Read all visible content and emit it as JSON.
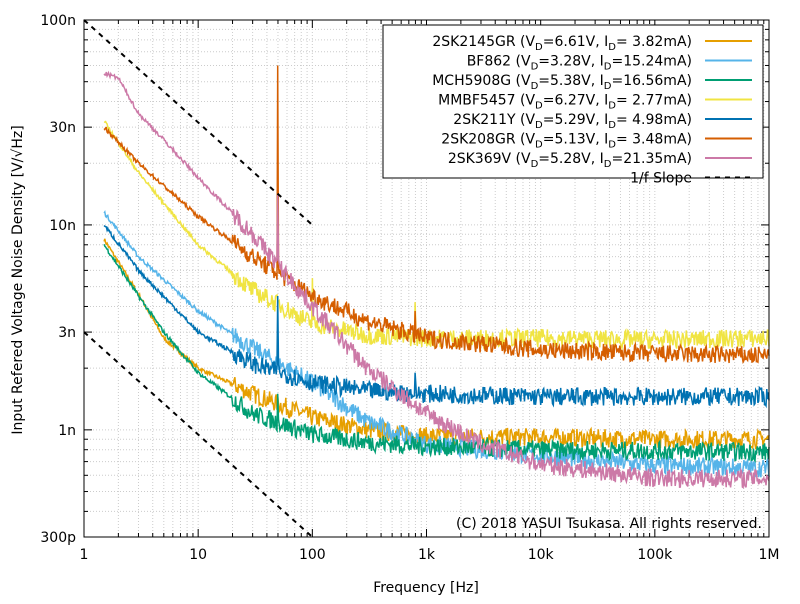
{
  "chart_data": {
    "type": "line",
    "xlabel": "Frequency [Hz]",
    "ylabel": "Input Refered Voltage Noise Density [V/√Hz]",
    "xscale": "log",
    "yscale": "log",
    "xlim": [
      1,
      1000000
    ],
    "ylim": [
      0.3,
      100
    ],
    "y_unit": "nV/√Hz",
    "x_ticks": [
      {
        "v": 1,
        "label": "1"
      },
      {
        "v": 10,
        "label": "10"
      },
      {
        "v": 100,
        "label": "100"
      },
      {
        "v": 1000,
        "label": "1k"
      },
      {
        "v": 10000,
        "label": "10k"
      },
      {
        "v": 100000,
        "label": "100k"
      },
      {
        "v": 1000000,
        "label": "1M"
      }
    ],
    "y_ticks": [
      {
        "v": 100,
        "label": "100n"
      },
      {
        "v": 30,
        "label": "30n"
      },
      {
        "v": 10,
        "label": "10n"
      },
      {
        "v": 3,
        "label": "3n"
      },
      {
        "v": 1,
        "label": "1n"
      },
      {
        "v": 0.3,
        "label": "300p"
      }
    ],
    "grid": true,
    "legend_position": "top-right",
    "copyright": "(C) 2018 YASUI Tsukasa. All rights reserved.",
    "series": [
      {
        "name": "2SK2145GR",
        "vd": "6.61V",
        "id": " 3.82mA",
        "color": "#e69f00",
        "x": [
          1.5,
          3,
          5,
          10,
          30,
          100,
          300,
          1000,
          10000,
          100000,
          1000000
        ],
        "y": [
          8.5,
          4.6,
          2.8,
          2.0,
          1.5,
          1.15,
          1.0,
          0.93,
          0.92,
          0.9,
          0.9
        ],
        "spikes": []
      },
      {
        "name": "BF862",
        "vd": "3.28V",
        "id": "15.24mA",
        "color": "#56b4e9",
        "x": [
          1.5,
          3,
          10,
          30,
          100,
          300,
          1000,
          10000,
          100000,
          1000000
        ],
        "y": [
          11.5,
          7,
          3.8,
          2.5,
          1.7,
          1.1,
          0.85,
          0.75,
          0.67,
          0.65
        ],
        "spikes": []
      },
      {
        "name": "MCH5908G",
        "vd": "5.38V",
        "id": "16.56mA",
        "color": "#009e73",
        "x": [
          1.5,
          3,
          5,
          10,
          30,
          100,
          300,
          1000,
          10000,
          1000000
        ],
        "y": [
          8,
          4.5,
          3.0,
          1.9,
          1.2,
          0.95,
          0.87,
          0.83,
          0.8,
          0.78
        ],
        "spikes": [
          [
            50,
            1.5
          ]
        ]
      },
      {
        "name": "MMBF5457",
        "vd": "6.27V",
        "id": " 2.77mA",
        "color": "#f0e442",
        "x": [
          1.5,
          3,
          10,
          30,
          100,
          300,
          1000,
          10000,
          100000,
          1000000
        ],
        "y": [
          32,
          18,
          8,
          4.8,
          3.3,
          2.9,
          2.8,
          2.8,
          2.75,
          2.8
        ],
        "spikes": [
          [
            100,
            5.5
          ],
          [
            800,
            4.2
          ]
        ]
      },
      {
        "name": "2SK211Y",
        "vd": "5.29V",
        "id": " 4.98mA",
        "color": "#0072b2",
        "x": [
          1.5,
          3,
          10,
          30,
          100,
          300,
          1000,
          10000,
          1000000
        ],
        "y": [
          10,
          6,
          3,
          2.1,
          1.7,
          1.55,
          1.5,
          1.45,
          1.45
        ],
        "spikes": [
          [
            50,
            4.5
          ],
          [
            800,
            1.9
          ]
        ]
      },
      {
        "name": "2SK208GR",
        "vd": "5.13V",
        "id": " 3.48mA",
        "color": "#d55e00",
        "x": [
          1.5,
          3,
          10,
          30,
          100,
          300,
          1000,
          10000,
          100000,
          1000000
        ],
        "y": [
          30,
          20,
          11,
          7,
          4.5,
          3.4,
          2.8,
          2.45,
          2.35,
          2.3
        ],
        "spikes": [
          [
            50,
            60
          ],
          [
            800,
            3.8
          ]
        ]
      },
      {
        "name": "2SK369V",
        "vd": "5.28V",
        "id": "21.35mA",
        "color": "#cc79a7",
        "x": [
          1.5,
          2,
          3,
          5,
          10,
          30,
          100,
          300,
          1000,
          3000,
          10000,
          100000,
          1000000
        ],
        "y": [
          55,
          52,
          35,
          26,
          17,
          9,
          4,
          2.0,
          1.2,
          0.85,
          0.68,
          0.58,
          0.58
        ],
        "spikes": [
          [
            50,
            14
          ]
        ]
      }
    ],
    "slope_label": "1/f Slope",
    "slope_lines": [
      {
        "x": [
          1,
          100
        ],
        "y": [
          100,
          10
        ]
      },
      {
        "x": [
          1,
          100
        ],
        "y": [
          3,
          0.3
        ]
      }
    ]
  }
}
